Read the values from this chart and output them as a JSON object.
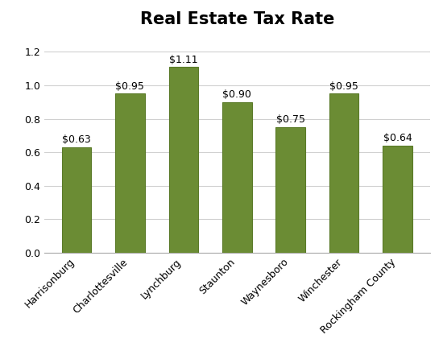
{
  "title": "Real Estate Tax Rate",
  "categories": [
    "Harrisonburg",
    "Charlottesville",
    "Lynchburg",
    "Staunton",
    "Waynesboro",
    "Winchester",
    "Rockingham County"
  ],
  "values": [
    0.63,
    0.95,
    1.11,
    0.9,
    0.75,
    0.95,
    0.64
  ],
  "labels": [
    "$0.63",
    "$0.95",
    "$1.11",
    "$0.90",
    "$0.75",
    "$0.95",
    "$0.64"
  ],
  "bar_color": "#6b8c34",
  "bar_edgecolor": "#5a7a28",
  "background_color": "#ffffff",
  "title_fontsize": 15,
  "label_fontsize": 9,
  "tick_fontsize": 9,
  "ylim": [
    0,
    1.3
  ],
  "yticks": [
    0,
    0.2,
    0.4,
    0.6,
    0.8,
    1.0,
    1.2
  ],
  "grid_color": "#d0d0d0",
  "border_color": "#aaaaaa"
}
